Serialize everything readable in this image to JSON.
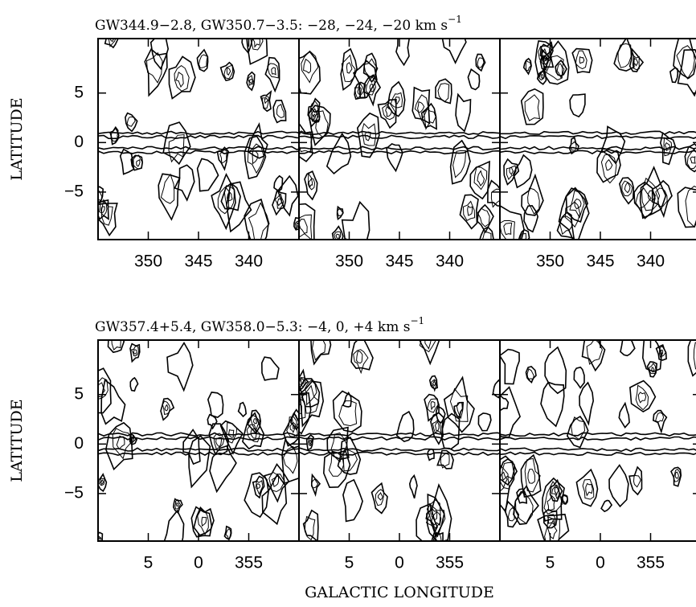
{
  "rows": [
    {
      "title": "GW344.9−2.8, GW350.7−3.5: −28, −24, −20 km s",
      "title_sup": "−1",
      "ylabel": "LATITUDE",
      "ylim": [
        -9.8,
        10.5
      ],
      "yticks": [
        5,
        0,
        {
          "value": -5,
          "label": "−5"
        }
      ],
      "xlim": [
        355,
        335
      ],
      "panels": [
        {
          "xticks": [
            350,
            345,
            340
          ]
        },
        {
          "xticks": [
            350,
            345,
            340
          ]
        },
        {
          "xticks": [
            350,
            345,
            340
          ]
        }
      ]
    },
    {
      "title": "GW357.4+5.4, GW358.0−5.3: −4, 0, +4 km s",
      "title_sup": "−1",
      "ylabel": "LATITUDE",
      "ylim": [
        -9.8,
        10.5
      ],
      "yticks": [
        5,
        0,
        {
          "value": -5,
          "label": "−5"
        }
      ],
      "xlim": [
        10,
        -10
      ],
      "panels": [
        {
          "xticks": [
            5,
            0,
            {
              "value": -5,
              "label": "355"
            }
          ]
        },
        {
          "xticks": [
            5,
            0,
            {
              "value": -5,
              "label": "355"
            }
          ]
        },
        {
          "xticks": [
            5,
            0,
            {
              "value": -5,
              "label": "355"
            }
          ]
        }
      ]
    }
  ],
  "xlabel": "GALACTIC LONGITUDE"
}
